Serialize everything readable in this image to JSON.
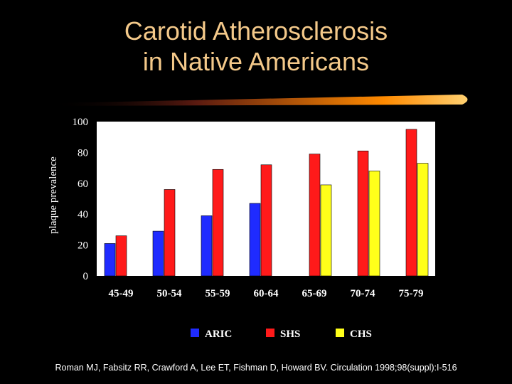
{
  "slide": {
    "title_line1": "Carotid Atherosclerosis",
    "title_line2": "in Native Americans",
    "citation": "Roman MJ, Fabsitz RR, Crawford A, Lee ET, Fishman D, Howard BV. Circulation 1998;98(suppl):I-516"
  },
  "colors": {
    "ARIC": "#1f2bff",
    "SHS": "#ff1a1a",
    "CHS": "#ffff1a",
    "plot_bg": "#ffffff",
    "accent": "#ff9900"
  },
  "chart_data": {
    "type": "bar",
    "title": "",
    "xlabel": "",
    "ylabel": "plaque prevalence",
    "ylim": [
      0,
      100
    ],
    "yticks": [
      "0",
      "20",
      "40",
      "60",
      "80",
      "100"
    ],
    "categories": [
      "45-49",
      "50-54",
      "55-59",
      "60-64",
      "65-69",
      "70-74",
      "75-79"
    ],
    "series": [
      {
        "name": "ARIC",
        "values": [
          21,
          29,
          39,
          47,
          null,
          null,
          null
        ]
      },
      {
        "name": "SHS",
        "values": [
          26,
          56,
          69,
          72,
          79,
          81,
          95
        ]
      },
      {
        "name": "CHS",
        "values": [
          null,
          null,
          null,
          null,
          59,
          68,
          73
        ]
      }
    ],
    "legend_position": "bottom",
    "grid": false
  }
}
